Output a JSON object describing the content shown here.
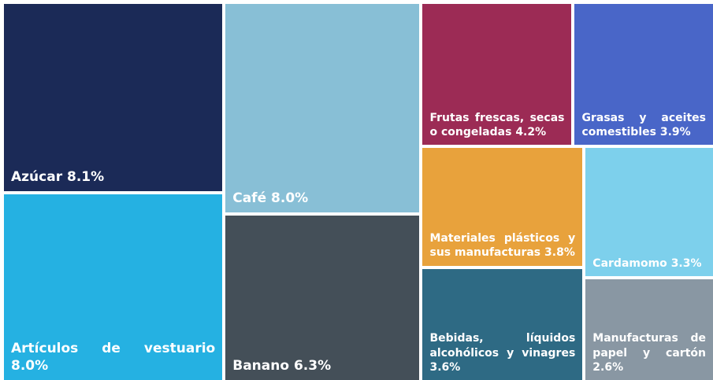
{
  "chart_data": {
    "type": "treemap",
    "categories": [
      "Azúcar",
      "Artículos de vestuario",
      "Café",
      "Banano",
      "Frutas frescas, secas o congeladas",
      "Grasas y aceites comestibles",
      "Materiales plásticos y sus manufacturas",
      "Bebidas, líquidos alcohólicos y vinagres",
      "Cardamomo",
      "Manufacturas de papel y cartón"
    ],
    "values": [
      8.1,
      8.0,
      8.0,
      6.3,
      4.2,
      3.9,
      3.8,
      3.6,
      3.3,
      2.6
    ],
    "value_labels": [
      "8.1%",
      "8.0%",
      "8.0%",
      "6.3%",
      "4.2%",
      "3.9%",
      "3.8%",
      "3.6%",
      "3.3%",
      "2.6%"
    ],
    "colors": [
      "#1b2a57",
      "#25b1e2",
      "#88bfd6",
      "#444f58",
      "#9c2b55",
      "#4966c8",
      "#e8a23c",
      "#2e6a84",
      "#7dd0ec",
      "#8997a3"
    ]
  }
}
